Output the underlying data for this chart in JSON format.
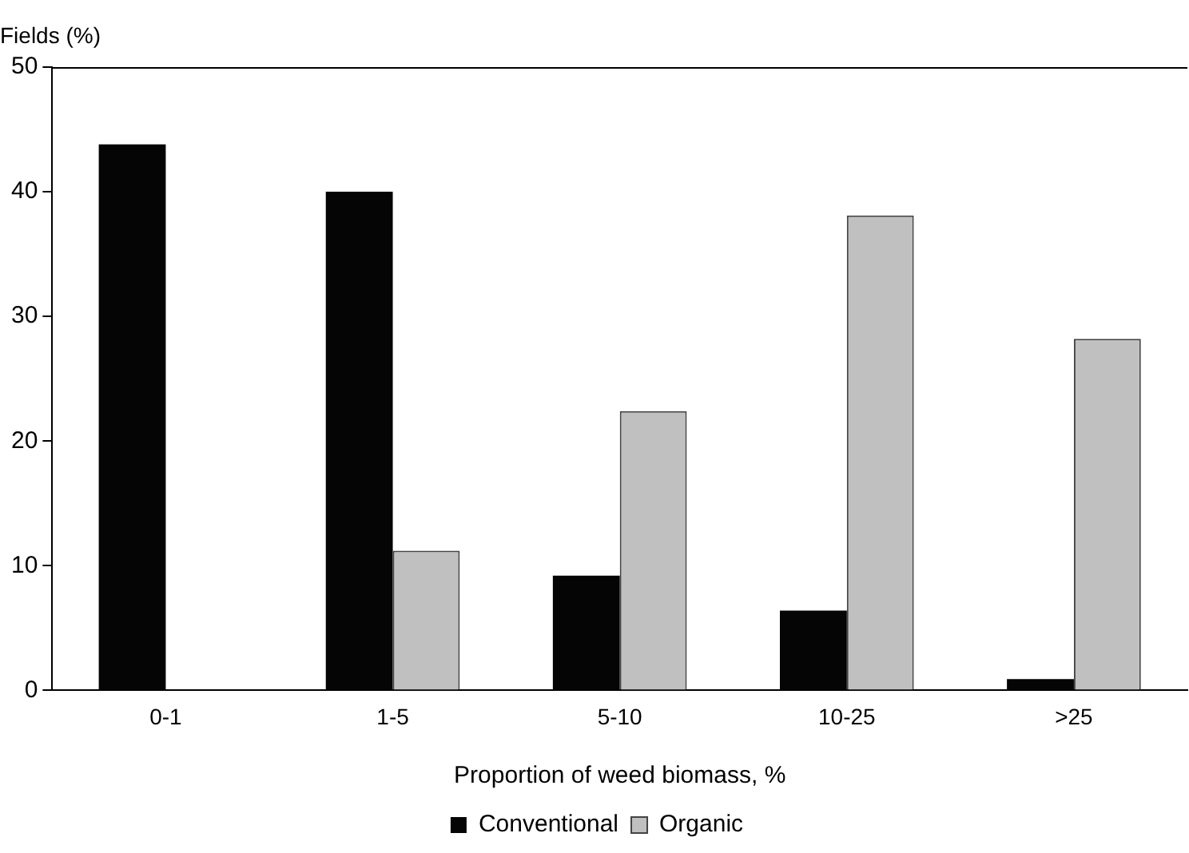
{
  "chart_data": {
    "type": "bar",
    "ylabel": "Fields (%)",
    "xlabel": "Proportion of weed biomass, %",
    "categories": [
      "0-1",
      "1-5",
      "5-10",
      "10-25",
      ">25"
    ],
    "series": [
      {
        "name": "Conventional",
        "color": "#050505",
        "values": [
          43.8,
          40.0,
          9.2,
          6.4,
          0.9
        ]
      },
      {
        "name": "Organic",
        "color": "#c0c0c0",
        "values": [
          0,
          11.2,
          22.4,
          38.1,
          28.2
        ]
      }
    ],
    "ylim": [
      0,
      50
    ],
    "yticks": [
      0,
      10,
      20,
      30,
      40,
      50
    ],
    "grid": false,
    "legend": "bottom"
  }
}
